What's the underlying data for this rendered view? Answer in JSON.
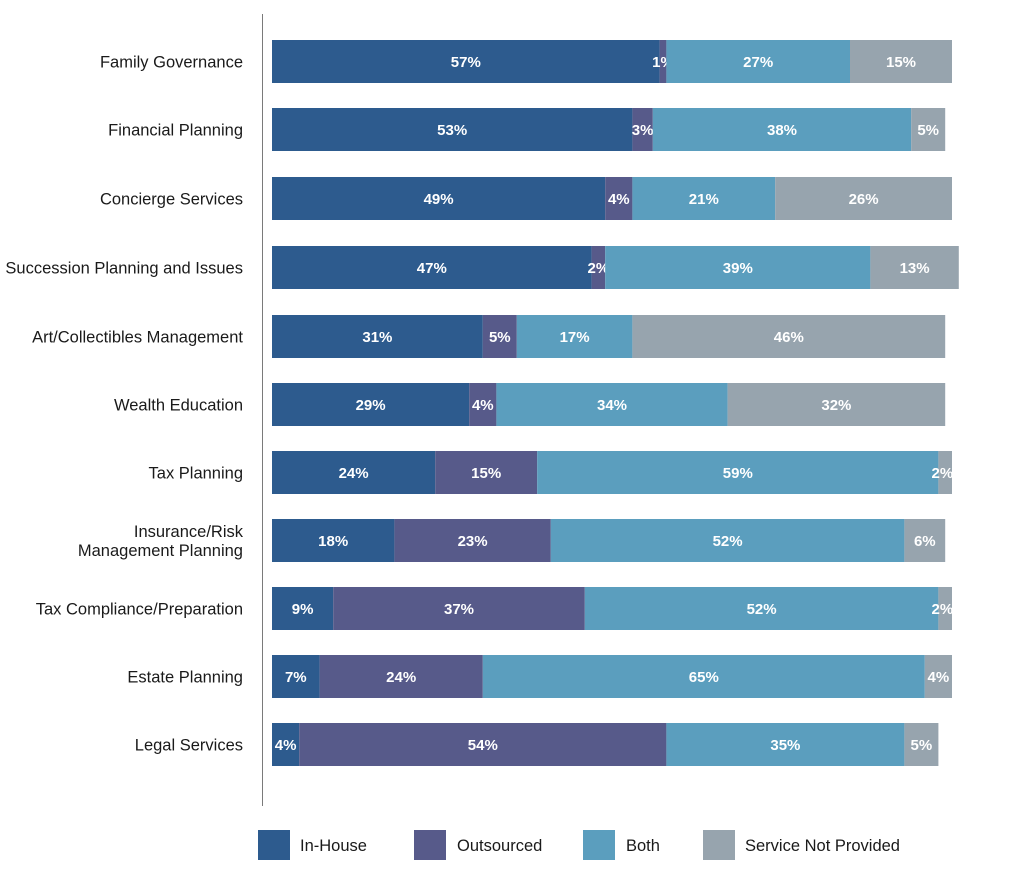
{
  "chart_data": {
    "type": "bar",
    "orientation": "horizontal",
    "stacked": true,
    "title": "",
    "xlabel": "",
    "ylabel": "",
    "xlim": [
      0,
      100
    ],
    "grid": false,
    "legend_position": "bottom",
    "categories": [
      [
        "Family Governance"
      ],
      [
        "Financial Planning"
      ],
      [
        "Concierge Services"
      ],
      [
        "Succession Planning and Issues"
      ],
      [
        "Art/Collectibles Management"
      ],
      [
        "Wealth Education"
      ],
      [
        "Tax Planning"
      ],
      [
        "Insurance/Risk",
        "Management Planning"
      ],
      [
        "Tax Compliance/Preparation"
      ],
      [
        "Estate Planning"
      ],
      [
        "Legal Services"
      ]
    ],
    "series": [
      {
        "name": "In-House",
        "color": "#2d5b8e",
        "values": [
          57,
          53,
          49,
          47,
          31,
          29,
          24,
          18,
          9,
          7,
          4
        ]
      },
      {
        "name": "Outsourced",
        "color": "#575a8a",
        "values": [
          1,
          3,
          4,
          2,
          5,
          4,
          15,
          23,
          37,
          24,
          54
        ]
      },
      {
        "name": "Both",
        "color": "#5b9ebe",
        "values": [
          27,
          38,
          21,
          39,
          17,
          34,
          59,
          52,
          52,
          65,
          35
        ]
      },
      {
        "name": "Service Not Provided",
        "color": "#97a4ae",
        "values": [
          15,
          5,
          26,
          13,
          46,
          32,
          2,
          6,
          2,
          4,
          5
        ]
      }
    ],
    "value_suffix": "%"
  }
}
